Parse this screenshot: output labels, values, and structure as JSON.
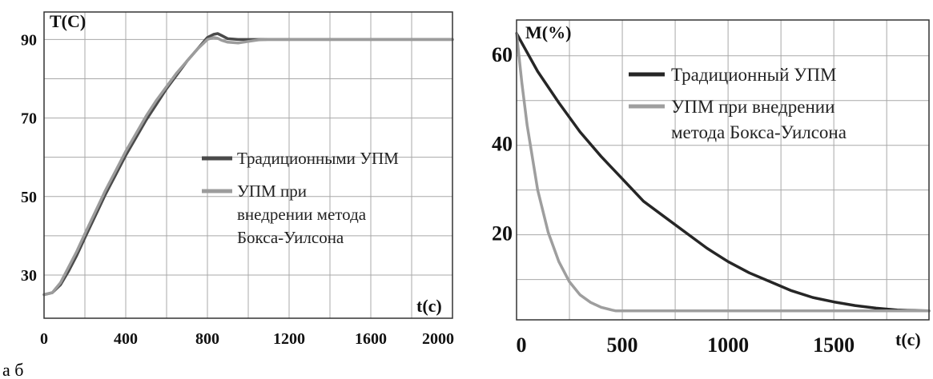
{
  "caption": "а б",
  "chart_data": [
    {
      "type": "line",
      "panel": "a",
      "title": "",
      "ylabel": "T(C)",
      "xlabel": "t(c)",
      "xlim": [
        0,
        2000
      ],
      "ylim": [
        19,
        97
      ],
      "xticks": [
        0,
        400,
        800,
        1200,
        1600,
        2000
      ],
      "yticks": [
        30,
        50,
        70,
        90
      ],
      "grid": true,
      "legend_position": "center-right",
      "series": [
        {
          "name": "Традиционными УПМ",
          "color": "#4a4a4a",
          "x": [
            0,
            40,
            80,
            120,
            160,
            200,
            250,
            300,
            350,
            400,
            450,
            500,
            550,
            600,
            650,
            700,
            750,
            800,
            830,
            850,
            870,
            900,
            950,
            1000,
            1100,
            1200,
            1400,
            1600,
            1800,
            2000
          ],
          "y": [
            25,
            25.5,
            27.5,
            31,
            35,
            39.5,
            45,
            50.5,
            55.5,
            60.5,
            65,
            69.5,
            73.5,
            77.5,
            81,
            84.5,
            87.5,
            90.5,
            91.3,
            91.5,
            91,
            90.2,
            90,
            90,
            90,
            90,
            90,
            90,
            90,
            90
          ]
        },
        {
          "name": "УПМ при внедрении метода Бокса-Уилсона",
          "color": "#9c9c9c",
          "x": [
            0,
            40,
            80,
            120,
            160,
            200,
            250,
            300,
            350,
            400,
            450,
            500,
            550,
            600,
            650,
            700,
            750,
            800,
            830,
            850,
            870,
            900,
            950,
            1000,
            1050,
            1100,
            1200,
            1400,
            1600,
            1800,
            2000
          ],
          "y": [
            25,
            25.5,
            28,
            32,
            36,
            40.5,
            46,
            51.5,
            56.5,
            61.5,
            66,
            70.5,
            74.5,
            78,
            81.5,
            84.5,
            87.5,
            90,
            90.5,
            90.3,
            89.8,
            89.3,
            89.1,
            89.5,
            89.9,
            90,
            90,
            90,
            90,
            90,
            90
          ]
        }
      ]
    },
    {
      "type": "line",
      "panel": "b",
      "title": "",
      "ylabel": "M(%)",
      "xlabel": "t(c)",
      "xlim": [
        0,
        1950
      ],
      "ylim": [
        1,
        68
      ],
      "xticks": [
        0,
        500,
        1000,
        1500
      ],
      "yticks": [
        20,
        40,
        60
      ],
      "grid": true,
      "legend_position": "top-right",
      "series": [
        {
          "name": "Традиционный УПМ",
          "color": "#262626",
          "x": [
            0,
            100,
            200,
            300,
            400,
            500,
            600,
            700,
            800,
            900,
            1000,
            1100,
            1200,
            1300,
            1400,
            1500,
            1600,
            1700,
            1800,
            1850,
            1950
          ],
          "y": [
            65,
            56.5,
            49.5,
            43,
            37.5,
            32.5,
            27.5,
            24,
            20.5,
            17,
            14,
            11.5,
            9.5,
            7.5,
            6,
            5,
            4.2,
            3.6,
            3.2,
            3.1,
            3
          ]
        },
        {
          "name": "УПМ при внедрении метода Бокса-Уилсона",
          "color": "#9e9e9e",
          "x": [
            0,
            25,
            50,
            100,
            150,
            200,
            250,
            300,
            350,
            400,
            450,
            470,
            600,
            800,
            1000,
            1500,
            1950
          ],
          "y": [
            65,
            54,
            44.5,
            30,
            20.5,
            14,
            9.5,
            6.6,
            4.9,
            3.8,
            3.2,
            3,
            3,
            3,
            3,
            3,
            3
          ]
        }
      ],
      "legend_labels": {
        "series0": [
          "Традиционный УПМ"
        ],
        "series1": [
          "УПМ при внедрении",
          "метода Бокса-Уилсона"
        ]
      }
    }
  ],
  "legend_a": {
    "entry0": [
      "Традиционными УПМ"
    ],
    "entry1": [
      "УПМ при",
      "внедрении метода",
      "Бокса-Уилсона"
    ]
  }
}
